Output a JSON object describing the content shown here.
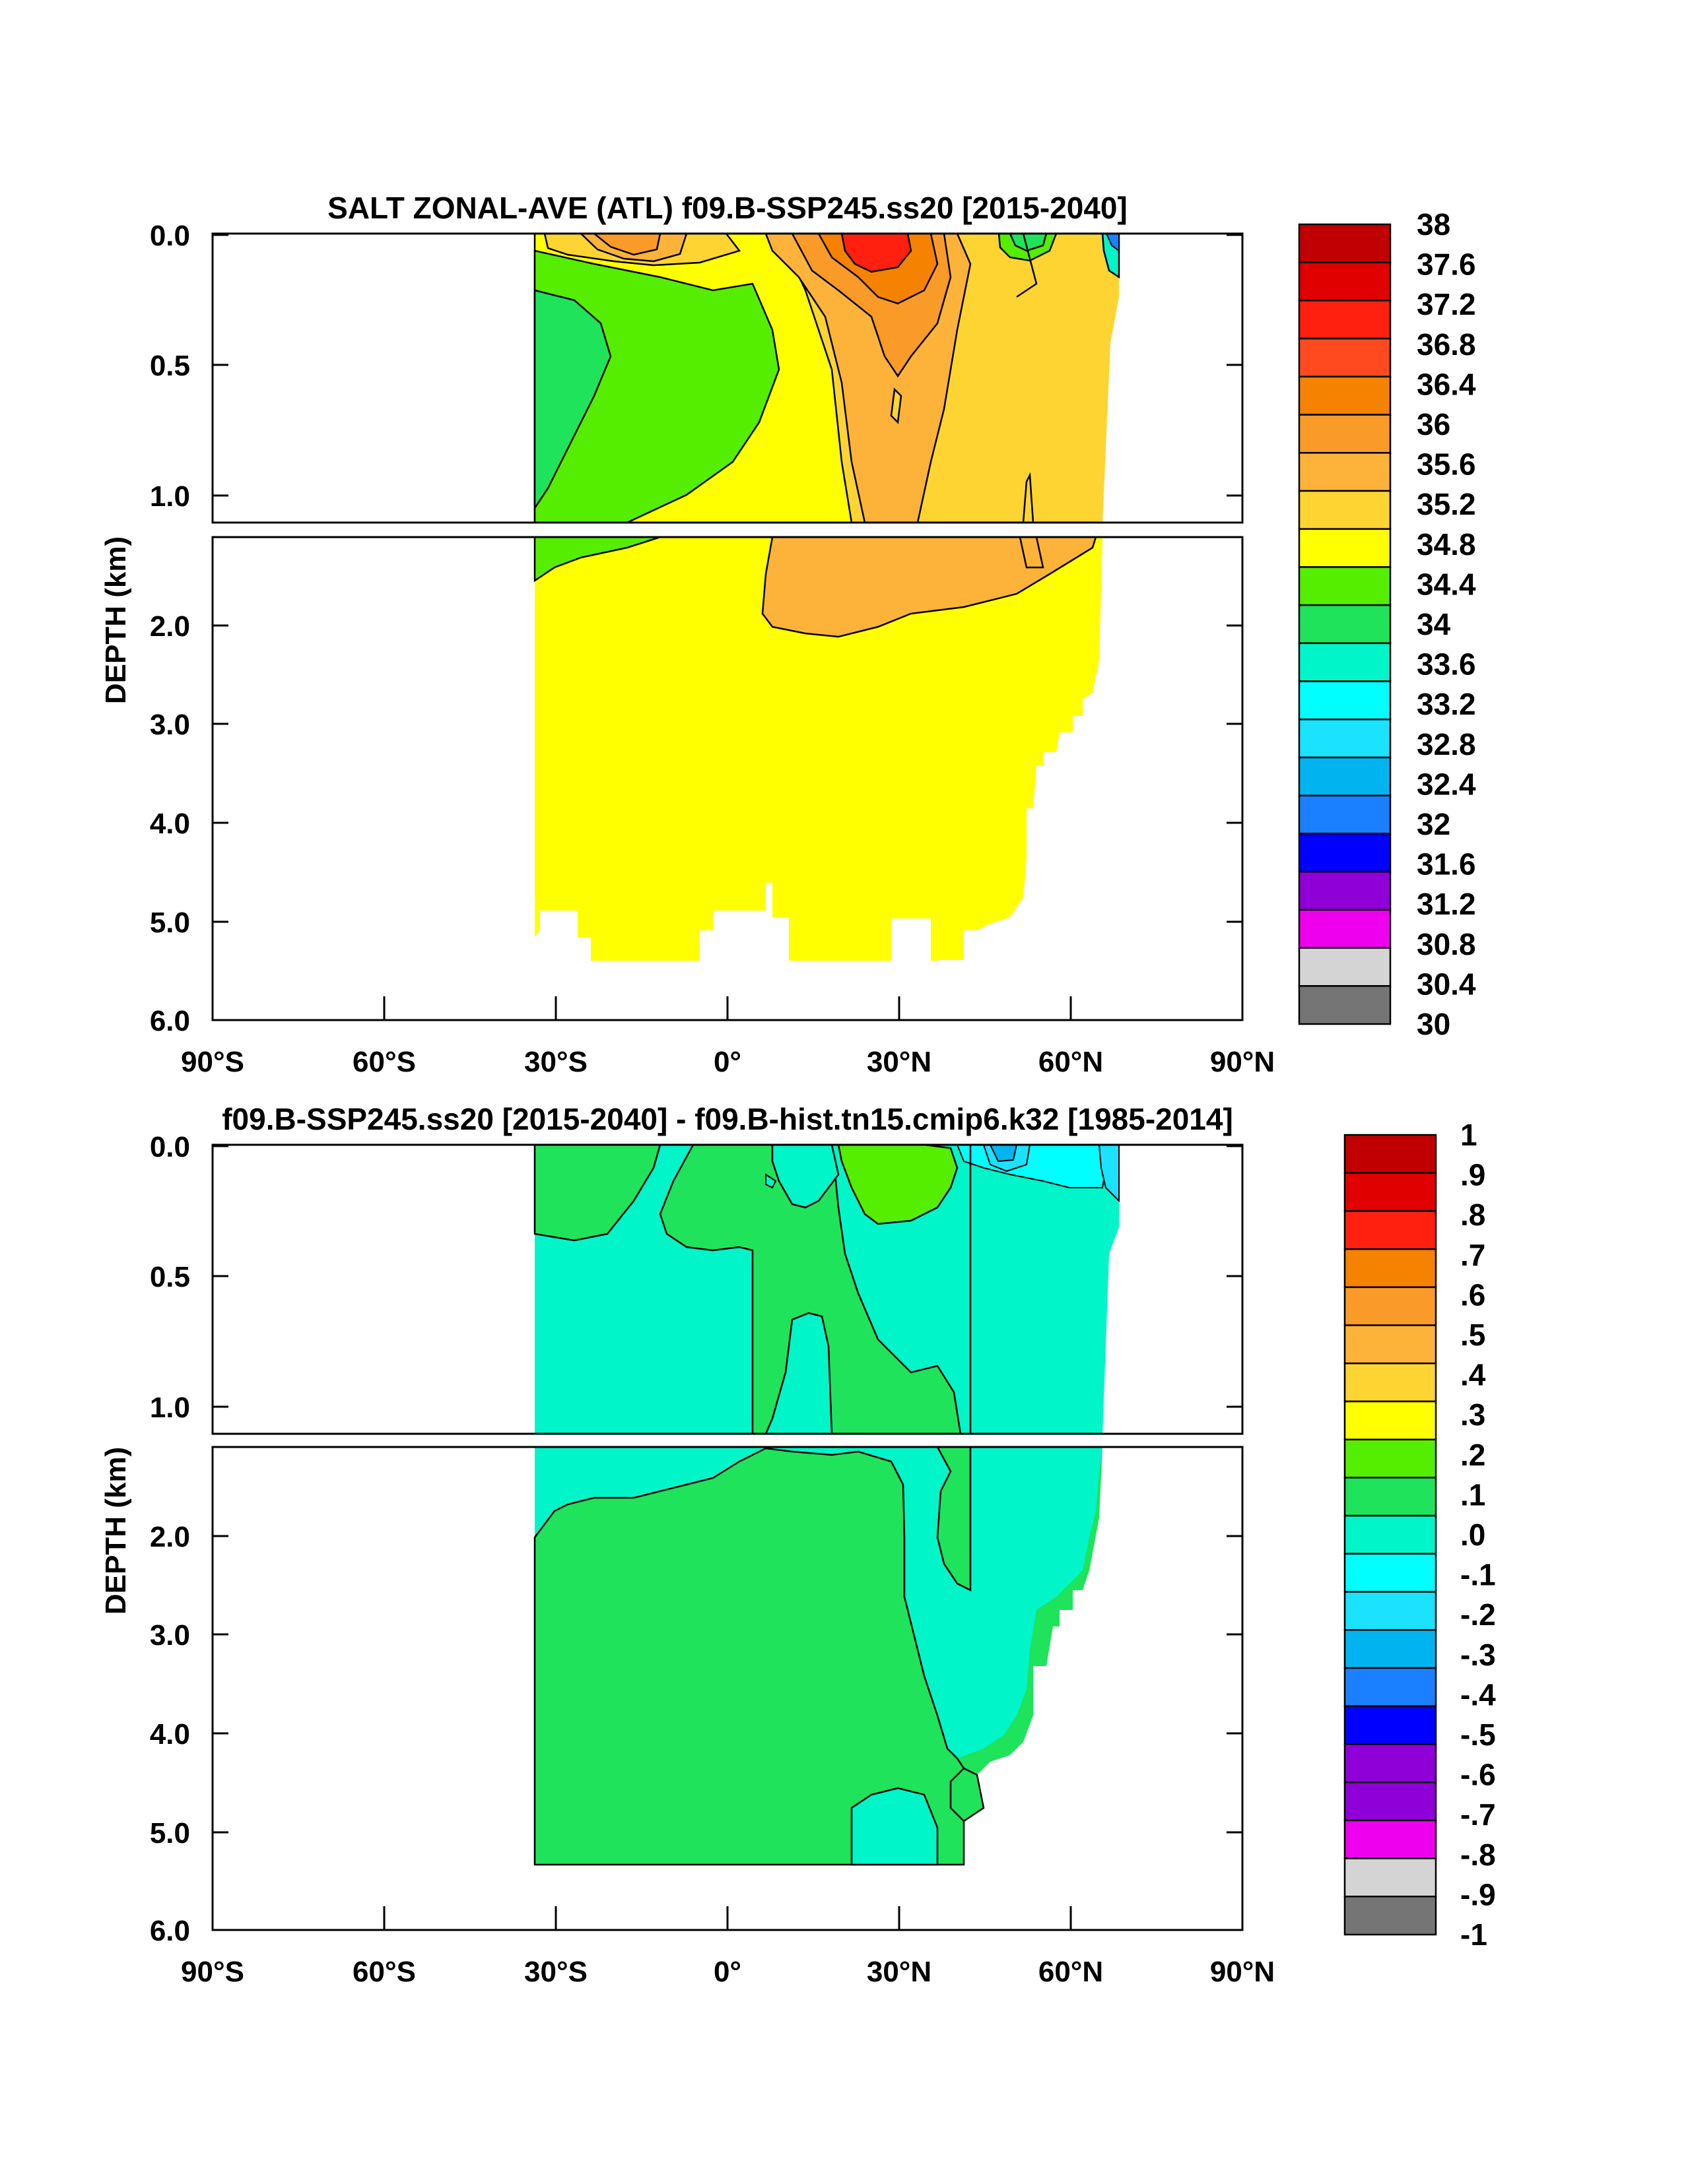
{
  "chart_data": [
    {
      "type": "heatmap",
      "title": "SALT ZONAL-AVE (ATL) f09.B-SSP245.ss20 [2015-2040]",
      "ylabel": "DEPTH (km)",
      "xlim": [
        -90,
        90
      ],
      "ylim": [
        6.0,
        0.0
      ],
      "x_ticks": [
        "90°S",
        "60°S",
        "30°S",
        "0°",
        "30°N",
        "60°N",
        "90°N"
      ],
      "y_ticks_upper": [
        "0.0",
        "0.5",
        "1.0"
      ],
      "y_ticks_lower": [
        "2.0",
        "3.0",
        "4.0",
        "5.0",
        "6.0"
      ],
      "colorbar_labels": [
        "38",
        "37.6",
        "37.2",
        "36.8",
        "36.4",
        "36",
        "35.6",
        "35.2",
        "34.8",
        "34.4",
        "34",
        "33.6",
        "33.2",
        "32.8",
        "32.4",
        "32",
        "31.6",
        "31.2",
        "30.8",
        "30.4",
        "30"
      ],
      "colorbar_colors": [
        "#c00000",
        "#e00000",
        "#ff2010",
        "#ff4a20",
        "#f58200",
        "#fa9a28",
        "#fdb339",
        "#fed433",
        "#ffff00",
        "#55ee00",
        "#1fe35a",
        "#00f5c8",
        "#00ffff",
        "#1ae2ff",
        "#00b5ef",
        "#1a80ff",
        "#0000ff",
        "#8f00d8",
        "#ee00ee",
        "#d4d4d4",
        "#757575"
      ],
      "regions": {
        "ocean_extent": "34°S to 68°N",
        "dominant_deep_value": "34.8-35.2",
        "max_surface": "36.8-37.2 near 25°N"
      }
    },
    {
      "type": "heatmap",
      "title": "f09.B-SSP245.ss20 [2015-2040] - f09.B-hist.tn15.cmip6.k32 [1985-2014]",
      "ylabel": "DEPTH (km)",
      "xlim": [
        -90,
        90
      ],
      "ylim": [
        6.0,
        0.0
      ],
      "x_ticks": [
        "90°S",
        "60°S",
        "30°S",
        "0°",
        "30°N",
        "60°N",
        "90°N"
      ],
      "y_ticks_upper": [
        "0.0",
        "0.5",
        "1.0"
      ],
      "y_ticks_lower": [
        "2.0",
        "3.0",
        "4.0",
        "5.0",
        "6.0"
      ],
      "colorbar_labels": [
        "1",
        ".9",
        ".8",
        ".7",
        ".6",
        ".5",
        ".4",
        ".3",
        ".2",
        ".1",
        ".0",
        "-.1",
        "-.2",
        "-.3",
        "-.4",
        "-.5",
        "-.6",
        "-.7",
        "-.8",
        "-.9",
        "-1"
      ],
      "colorbar_colors": [
        "#c00000",
        "#e00000",
        "#ff2010",
        "#f58200",
        "#fa9a28",
        "#fdb339",
        "#fed433",
        "#ffff00",
        "#55ee00",
        "#1fe35a",
        "#00f5c8",
        "#00ffff",
        "#1ae2ff",
        "#00b5ef",
        "#1a80ff",
        "#0000ff",
        "#8f00d8",
        "#8f00d8",
        "#ee00ee",
        "#d4d4d4",
        "#757575"
      ],
      "regions": {
        "dominant_values": "0.0-0.1 and 0.1-0.2",
        "surface_min": "-0.4 near 50°N"
      }
    }
  ]
}
